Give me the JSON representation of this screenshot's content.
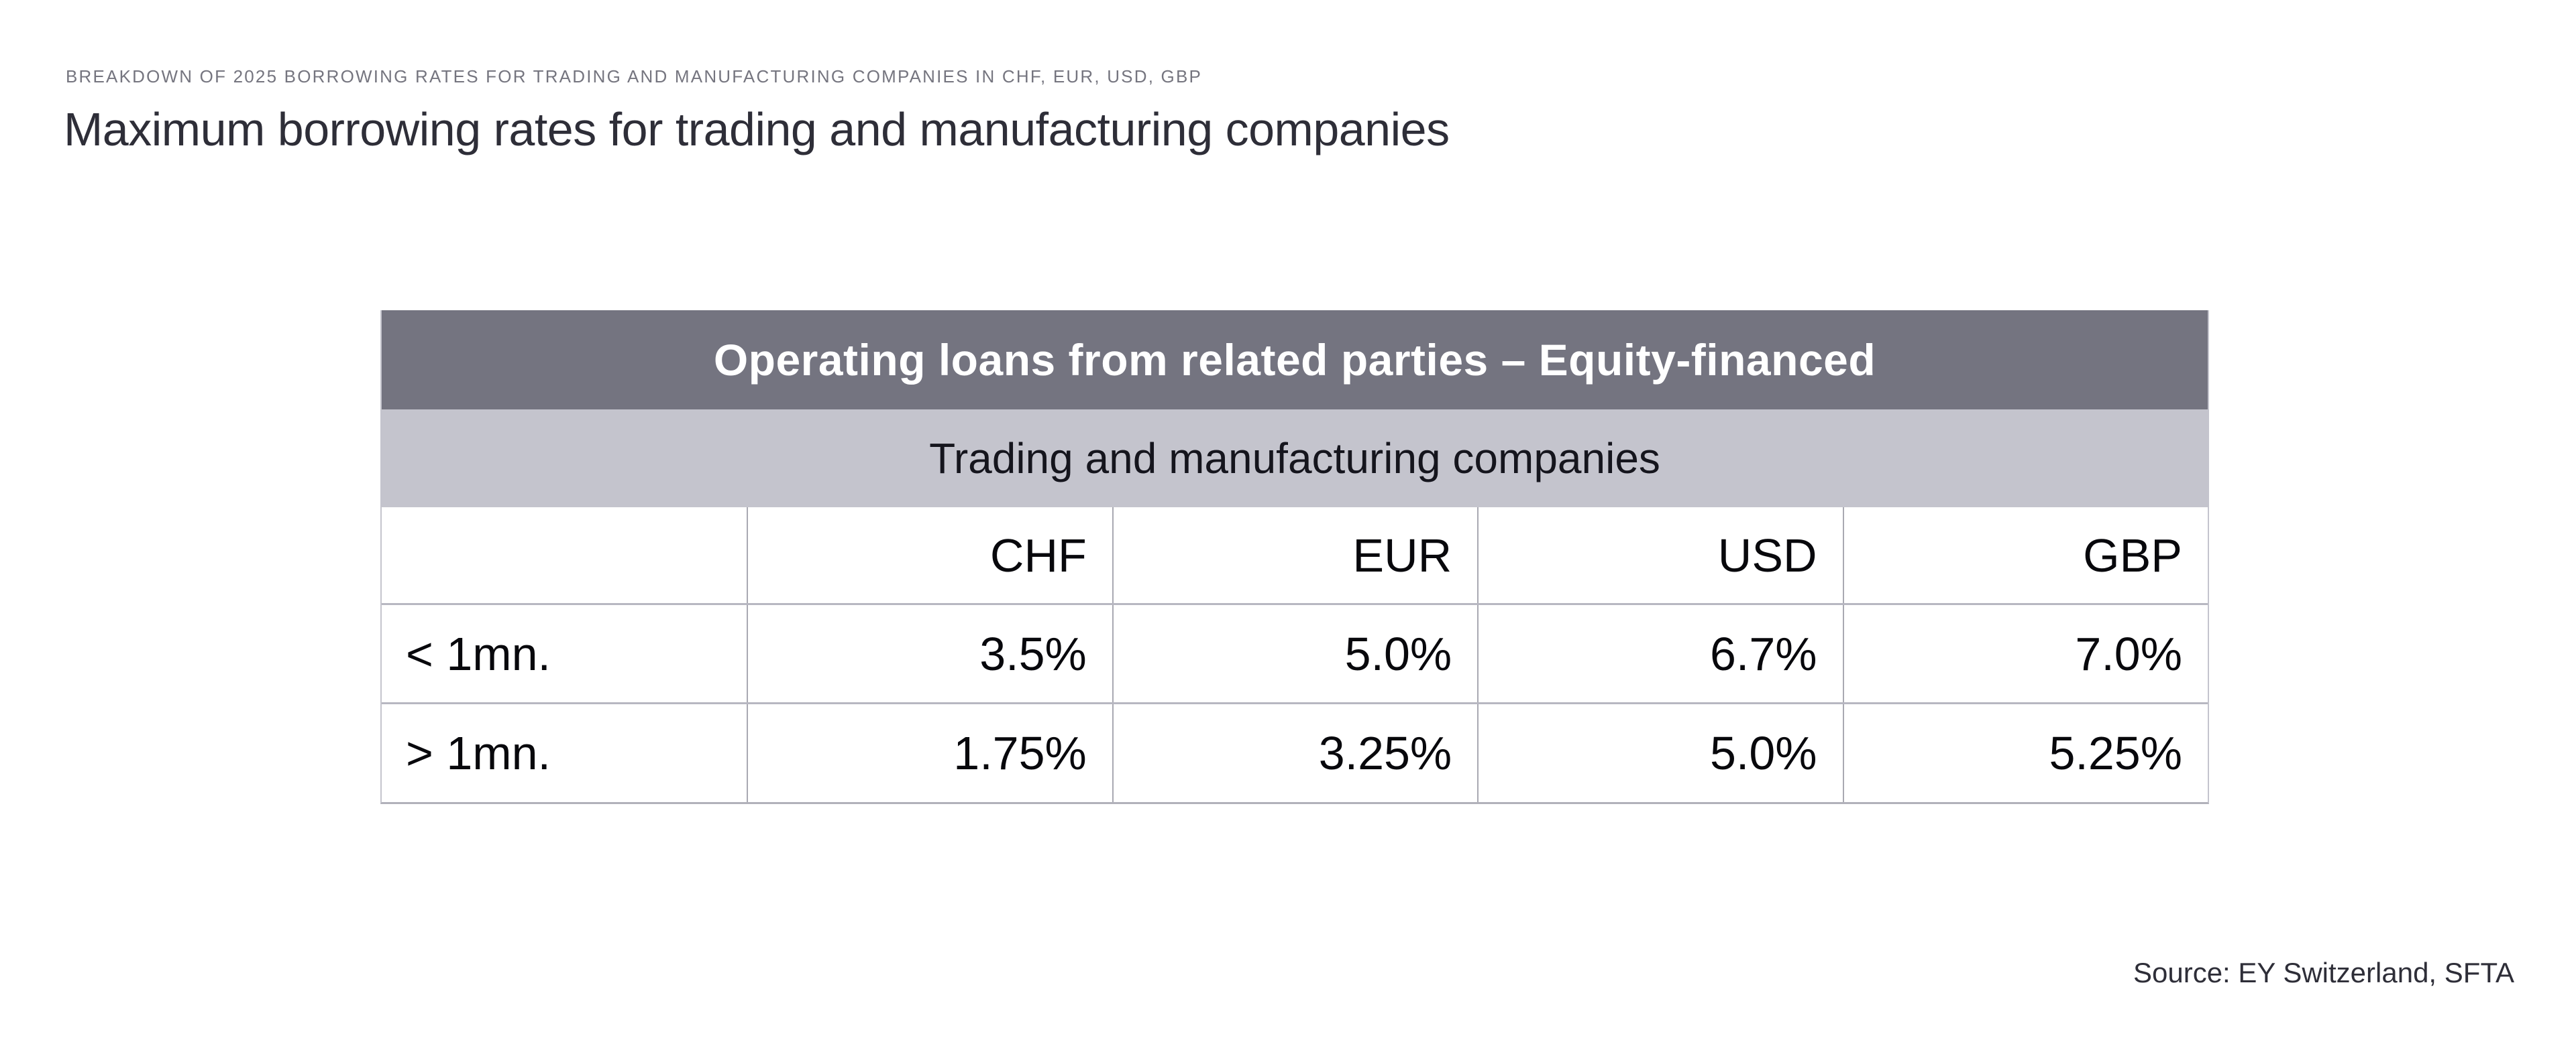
{
  "page": {
    "eyebrow": "BREAKDOWN OF 2025 BORROWING RATES FOR TRADING AND MANUFACTURING COMPANIES IN CHF, EUR, USD, GBP",
    "title": "Maximum borrowing rates for trading and manufacturing companies",
    "source": "Source: EY Switzerland, SFTA"
  },
  "table": {
    "band_title": "Operating loans from related parties – Equity-financed",
    "band_subtitle": "Trading and manufacturing companies",
    "columns": [
      "",
      "CHF",
      "EUR",
      "USD",
      "GBP"
    ],
    "rows": [
      {
        "label": "< 1mn.",
        "values": [
          "3.5%",
          "5.0%",
          "6.7%",
          "7.0%"
        ]
      },
      {
        "label": "> 1mn.",
        "values": [
          "1.75%",
          "3.25%",
          "5.0%",
          "5.25%"
        ]
      }
    ]
  },
  "chart_data": {
    "type": "table",
    "title": "Operating loans from related parties – Equity-financed",
    "subtitle": "Trading and manufacturing companies",
    "columns": [
      "CHF",
      "EUR",
      "USD",
      "GBP"
    ],
    "row_categories": [
      "< 1mn.",
      "> 1mn."
    ],
    "values_percent": [
      [
        3.5,
        5.0,
        6.7,
        7.0
      ],
      [
        1.75,
        3.25,
        5.0,
        5.25
      ]
    ],
    "unit": "%"
  },
  "colors": {
    "band_dark": "#747480",
    "band_light": "#c4c4cd",
    "text_dark": "#2e2e38",
    "text_muted": "#75757f",
    "grid_horizontal": "#b7b7c1",
    "grid_vertical": "#a9a9b2"
  }
}
